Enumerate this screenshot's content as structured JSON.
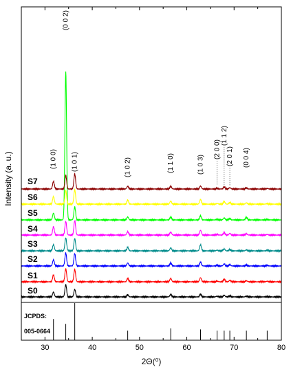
{
  "chart_data": {
    "type": "line",
    "xlabel": "2Θ(⁰)",
    "ylabel": "Intensity (a. u.)",
    "xlim": [
      25,
      80
    ],
    "x_ticks": [
      30,
      40,
      50,
      60,
      70,
      80
    ],
    "peak_positions": [
      31.8,
      34.4,
      36.3,
      47.5,
      56.6,
      62.9,
      66.4,
      67.9,
      69.1,
      72.6,
      77.0
    ],
    "series": [
      {
        "name": "S0",
        "color": "#000000",
        "heights": [
          0.35,
          0.9,
          0.55,
          0.15,
          0.18,
          0.2,
          0.05,
          0.12,
          0.08,
          0.05,
          0.03
        ]
      },
      {
        "name": "S1",
        "color": "#ff0000",
        "heights": [
          0.5,
          0.95,
          0.9,
          0.25,
          0.25,
          0.3,
          0.05,
          0.18,
          0.1,
          0.08,
          0.04
        ]
      },
      {
        "name": "S2",
        "color": "#0000ff",
        "heights": [
          0.45,
          0.95,
          0.9,
          0.22,
          0.22,
          0.28,
          0.05,
          0.15,
          0.1,
          0.07,
          0.04
        ]
      },
      {
        "name": "S3",
        "color": "#008b8b",
        "heights": [
          0.45,
          0.95,
          0.9,
          0.25,
          0.22,
          0.45,
          0.05,
          0.15,
          0.1,
          0.07,
          0.04
        ]
      },
      {
        "name": "S4",
        "color": "#ff00ff",
        "heights": [
          0.6,
          1.0,
          1.05,
          0.25,
          0.22,
          0.35,
          0.05,
          0.18,
          0.12,
          0.1,
          0.04
        ]
      },
      {
        "name": "S5",
        "color": "#00ff00",
        "heights": [
          0.5,
          1.0,
          0.95,
          0.22,
          0.22,
          0.3,
          0.05,
          0.15,
          0.1,
          0.2,
          0.04
        ]
      },
      {
        "name": "S6",
        "color": "#ffff00",
        "heights": [
          0.55,
          1.0,
          1.05,
          0.3,
          0.22,
          0.35,
          0.05,
          0.2,
          0.12,
          0.1,
          0.04
        ]
      },
      {
        "name": "S7",
        "color": "#8b0000",
        "heights": [
          0.55,
          1.0,
          1.1,
          0.2,
          0.2,
          0.22,
          0.05,
          0.15,
          0.1,
          0.08,
          0.04
        ]
      }
    ],
    "tall_peak": {
      "series": "S5",
      "x": 34.4,
      "height": 10.8,
      "color": "#00ff00"
    },
    "peak_labels": [
      {
        "text": "(1 0 0)",
        "x": 31.8
      },
      {
        "text": "(0 0 2)",
        "x": 34.4
      },
      {
        "text": "(1 0 1)",
        "x": 36.3
      },
      {
        "text": "(1 0 2)",
        "x": 47.5
      },
      {
        "text": "(1 1 0)",
        "x": 56.6
      },
      {
        "text": "(1 0 3)",
        "x": 62.9
      },
      {
        "text": "(2 0 0)",
        "x": 66.4
      },
      {
        "text": "(1 1 2)",
        "x": 67.9
      },
      {
        "text": "(2 0 1)",
        "x": 69.1
      },
      {
        "text": "(0 0 4)",
        "x": 72.6
      }
    ],
    "reference": {
      "label_line1": "JCPDS:",
      "label_line2": "005-0664",
      "lines": [
        {
          "x": 31.8,
          "intensity": 0.57
        },
        {
          "x": 34.4,
          "intensity": 0.44
        },
        {
          "x": 36.3,
          "intensity": 1.0
        },
        {
          "x": 47.5,
          "intensity": 0.23
        },
        {
          "x": 56.6,
          "intensity": 0.32
        },
        {
          "x": 62.9,
          "intensity": 0.29
        },
        {
          "x": 66.4,
          "intensity": 0.04
        },
        {
          "x": 67.9,
          "intensity": 0.23
        },
        {
          "x": 69.1,
          "intensity": 0.11
        },
        {
          "x": 72.6,
          "intensity": 0.02
        },
        {
          "x": 77.0,
          "intensity": 0.04
        }
      ]
    }
  }
}
